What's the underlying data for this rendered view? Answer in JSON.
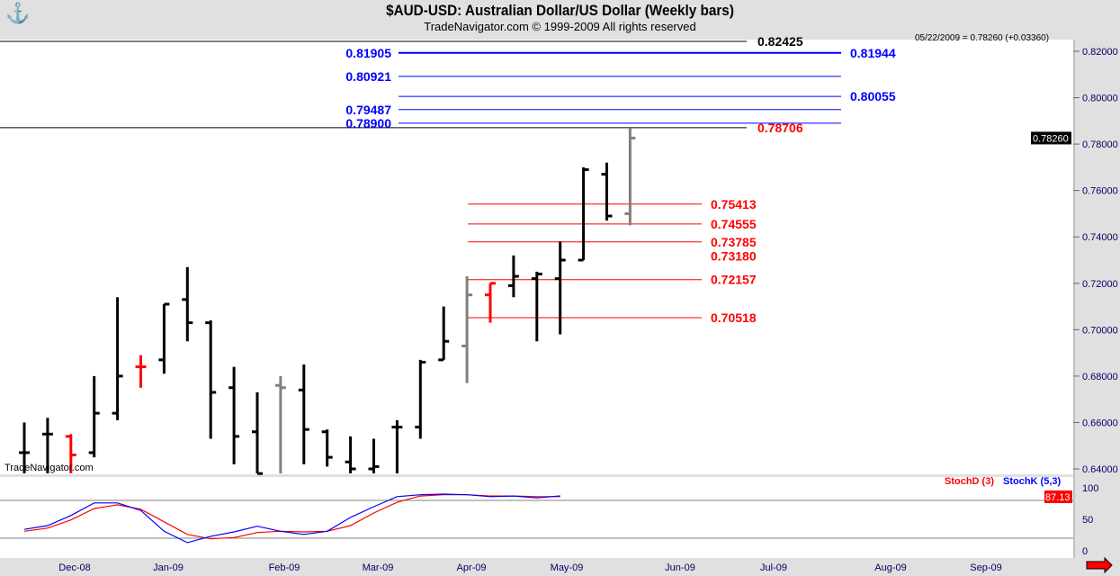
{
  "header": {
    "title": "$AUD-USD:  Australian Dollar/US Dollar  (Weekly bars)",
    "subtitle": "TradeNavigator.com © 1999-2009 All rights reserved",
    "quote": "05/22/2009 = 0.78260 (+0.03360)",
    "watermark": "TradeNavigator.com",
    "logo": "trade-navigator-logo"
  },
  "chart_data": [
    {
      "type": "ohlc",
      "title": "$AUD-USD:  Australian Dollar/US Dollar  (Weekly bars)",
      "ylim": [
        0.6377,
        0.825
      ],
      "yticks": [
        "0.82000",
        "0.80000",
        "0.78000",
        "0.76000",
        "0.74000",
        "0.72000",
        "0.70000",
        "0.68000",
        "0.66000",
        "0.64000"
      ],
      "xticks": [
        "Dec-08",
        "Jan-09",
        "Feb-09",
        "Mar-09",
        "Apr-09",
        "May-09",
        "Jun-09",
        "Jul-09",
        "Aug-09",
        "Sep-09"
      ],
      "last_price": "0.78260",
      "bars": [
        [
          0.66,
          0.638,
          0.647,
          0.647,
          "black"
        ],
        [
          0.662,
          0.638,
          0.655,
          0.655,
          "black"
        ],
        [
          0.655,
          0.638,
          0.654,
          0.646,
          "red"
        ],
        [
          0.68,
          0.645,
          0.647,
          0.664,
          "black"
        ],
        [
          0.714,
          0.661,
          0.664,
          0.68,
          "black"
        ],
        [
          0.689,
          0.675,
          0.684,
          0.684,
          "red"
        ],
        [
          0.711,
          0.681,
          0.687,
          0.711,
          "black"
        ],
        [
          0.727,
          0.695,
          0.713,
          0.703,
          "black"
        ],
        [
          0.704,
          0.653,
          0.703,
          0.673,
          "black"
        ],
        [
          0.684,
          0.642,
          0.675,
          0.654,
          "black"
        ],
        [
          0.673,
          0.638,
          0.656,
          0.638,
          "black"
        ],
        [
          0.68,
          0.638,
          0.676,
          0.675,
          "gray"
        ],
        [
          0.685,
          0.642,
          0.674,
          0.657,
          "black"
        ],
        [
          0.657,
          0.641,
          0.656,
          0.645,
          "black"
        ],
        [
          0.654,
          0.638,
          0.643,
          0.64,
          "black"
        ],
        [
          0.653,
          0.638,
          0.64,
          0.641,
          "black"
        ],
        [
          0.661,
          0.638,
          0.658,
          0.658,
          "black"
        ],
        [
          0.687,
          0.653,
          0.658,
          0.686,
          "black"
        ],
        [
          0.71,
          0.687,
          0.687,
          0.695,
          "black"
        ],
        [
          0.723,
          0.677,
          0.693,
          0.715,
          "gray"
        ],
        [
          0.72,
          0.703,
          0.715,
          0.72,
          "red"
        ],
        [
          0.732,
          0.714,
          0.719,
          0.723,
          "black"
        ],
        [
          0.725,
          0.695,
          0.722,
          0.724,
          "black"
        ],
        [
          0.738,
          0.698,
          0.722,
          0.73,
          "black"
        ],
        [
          0.77,
          0.73,
          0.73,
          0.769,
          "black"
        ],
        [
          0.772,
          0.747,
          0.767,
          0.749,
          "black"
        ],
        [
          0.787,
          0.745,
          0.75,
          0.7826,
          "gray"
        ]
      ],
      "levels": {
        "black": [
          {
            "value": "0.82425"
          },
          {
            "value": "0.78706",
            "label_color": "#ff0000"
          }
        ],
        "blue": [
          {
            "value": "0.81905",
            "label": "left"
          },
          {
            "value": "0.81944",
            "label": "right"
          },
          {
            "value": "0.80921",
            "label": "left"
          },
          {
            "value": "0.80055",
            "label": "right"
          },
          {
            "value": "0.79487",
            "label": "left"
          },
          {
            "value": "0.78900",
            "label": "left"
          }
        ],
        "red": [
          "0.75413",
          "0.74555",
          "0.73785",
          "0.73180",
          "0.72157",
          "0.70518"
        ]
      }
    },
    {
      "type": "line",
      "ylim": [
        0,
        100
      ],
      "yticks": [
        "100",
        "50",
        "0"
      ],
      "reference_lines": [
        80,
        20
      ],
      "series": [
        {
          "name": "StochD (3)",
          "color": "#ff0000",
          "values": [
            31,
            36,
            49,
            67,
            73,
            66,
            46,
            26,
            19,
            21,
            29,
            31,
            30,
            31,
            40,
            60,
            77,
            87,
            89,
            89,
            87,
            87,
            86,
            86
          ]
        },
        {
          "name": "StochK (5,3)",
          "color": "#0000ff",
          "values": [
            34,
            40,
            56,
            76,
            76,
            64,
            31,
            13,
            23,
            30,
            39,
            31,
            26,
            31,
            53,
            70,
            86,
            89,
            90,
            89,
            86,
            87,
            84,
            87.13
          ]
        }
      ],
      "last_value": "87.13"
    }
  ],
  "colors": {
    "blue": "#0000ff",
    "red": "#ff0000",
    "gray": "#808080"
  }
}
